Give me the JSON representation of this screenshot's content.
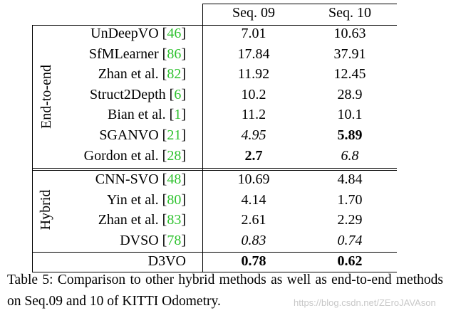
{
  "table": {
    "headers": [
      "Seq. 09",
      "Seq. 10"
    ],
    "groups": [
      {
        "label": "End-to-end",
        "rows": [
          {
            "method": "UnDeepVO",
            "cite": "46",
            "seq09": "7.01",
            "seq10": "10.63",
            "seq09_style": "normal",
            "seq10_style": "normal"
          },
          {
            "method": "SfMLearner",
            "cite": "86",
            "seq09": "17.84",
            "seq10": "37.91",
            "seq09_style": "normal",
            "seq10_style": "normal"
          },
          {
            "method": "Zhan et al.",
            "cite": "82",
            "seq09": "11.92",
            "seq10": "12.45",
            "seq09_style": "normal",
            "seq10_style": "normal"
          },
          {
            "method": "Struct2Depth",
            "cite": "6",
            "seq09": "10.2",
            "seq10": "28.9",
            "seq09_style": "normal",
            "seq10_style": "normal"
          },
          {
            "method": "Bian et al.",
            "cite": "1",
            "seq09": "11.2",
            "seq10": "10.1",
            "seq09_style": "normal",
            "seq10_style": "normal"
          },
          {
            "method": "SGANVO",
            "cite": "21",
            "seq09": "4.95",
            "seq10": "5.89",
            "seq09_style": "italic",
            "seq10_style": "bold"
          },
          {
            "method": "Gordon et al.",
            "cite": "28",
            "seq09": "2.7",
            "seq10": "6.8",
            "seq09_style": "bold",
            "seq10_style": "italic"
          }
        ]
      },
      {
        "label": "Hybrid",
        "rows": [
          {
            "method": "CNN-SVO",
            "cite": "48",
            "seq09": "10.69",
            "seq10": "4.84",
            "seq09_style": "normal",
            "seq10_style": "normal"
          },
          {
            "method": "Yin et al.",
            "cite": "80",
            "seq09": "4.14",
            "seq10": "1.70",
            "seq09_style": "normal",
            "seq10_style": "normal"
          },
          {
            "method": "Zhan et al.",
            "cite": "83",
            "seq09": "2.61",
            "seq10": "2.29",
            "seq09_style": "normal",
            "seq10_style": "normal"
          },
          {
            "method": "DVSO",
            "cite": "78",
            "seq09": "0.83",
            "seq10": "0.74",
            "seq09_style": "italic",
            "seq10_style": "italic"
          }
        ]
      }
    ],
    "final_row": {
      "method": "D3VO",
      "seq09": "0.78",
      "seq10": "0.62",
      "seq09_style": "bold",
      "seq10_style": "bold"
    }
  },
  "caption": "Table 5: Comparison to other hybrid methods as well as end-to-end methods on Seq.09 and 10 of KITTI Odometry.",
  "watermark": "https://blog.csdn.net/ZEroJAVAson"
}
